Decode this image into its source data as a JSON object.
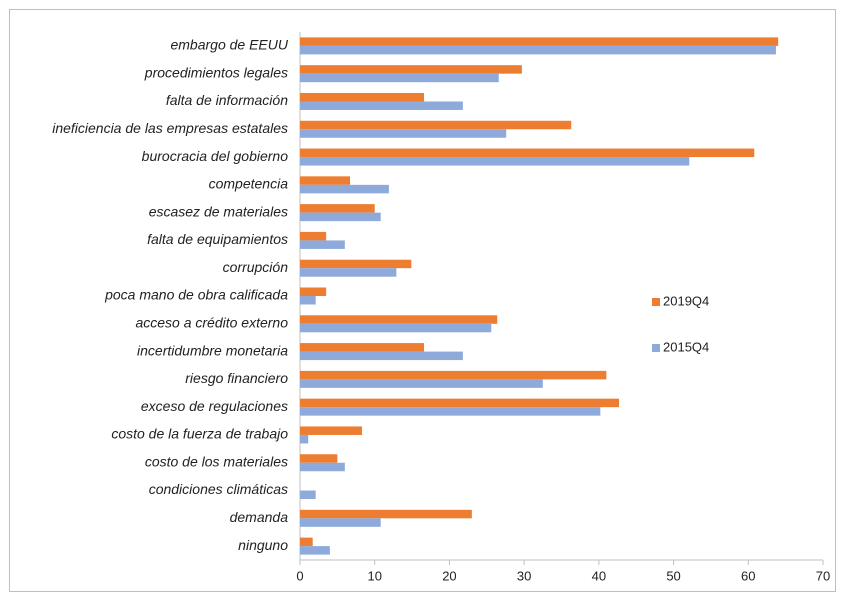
{
  "chart_data": {
    "type": "barh",
    "categories": [
      "embargo de EEUU",
      "procedimientos legales",
      "falta de información",
      "ineficiencia de las empresas estatales",
      "burocracia del gobierno",
      "competencia",
      "escasez de materiales",
      "falta de equipamientos",
      "corrupción",
      "poca mano de obra calificada",
      "acceso a crédito externo",
      "incertidumbre monetaria",
      "riesgo financiero",
      "exceso de regulaciones",
      "costo de la fuerza de trabajo",
      "costo de los materiales",
      "condiciones climáticas",
      "demanda",
      "ninguno"
    ],
    "series": [
      {
        "name": "2019Q4",
        "color": "#ed7d31",
        "values": [
          64.0,
          29.7,
          16.6,
          36.3,
          60.8,
          6.7,
          10.0,
          3.5,
          14.9,
          3.5,
          26.4,
          16.6,
          41.0,
          42.7,
          8.3,
          5.0,
          0,
          23.0,
          1.7
        ]
      },
      {
        "name": "2015Q4",
        "color": "#8eaadb",
        "values": [
          63.7,
          26.6,
          21.8,
          27.6,
          52.1,
          11.9,
          10.8,
          6.0,
          12.9,
          2.1,
          25.6,
          21.8,
          32.5,
          40.2,
          1.1,
          6.0,
          2.1,
          10.8,
          4.0
        ]
      }
    ],
    "xlim": [
      0,
      70
    ],
    "xticks": [
      0,
      10,
      20,
      30,
      40,
      50,
      60,
      70
    ]
  }
}
